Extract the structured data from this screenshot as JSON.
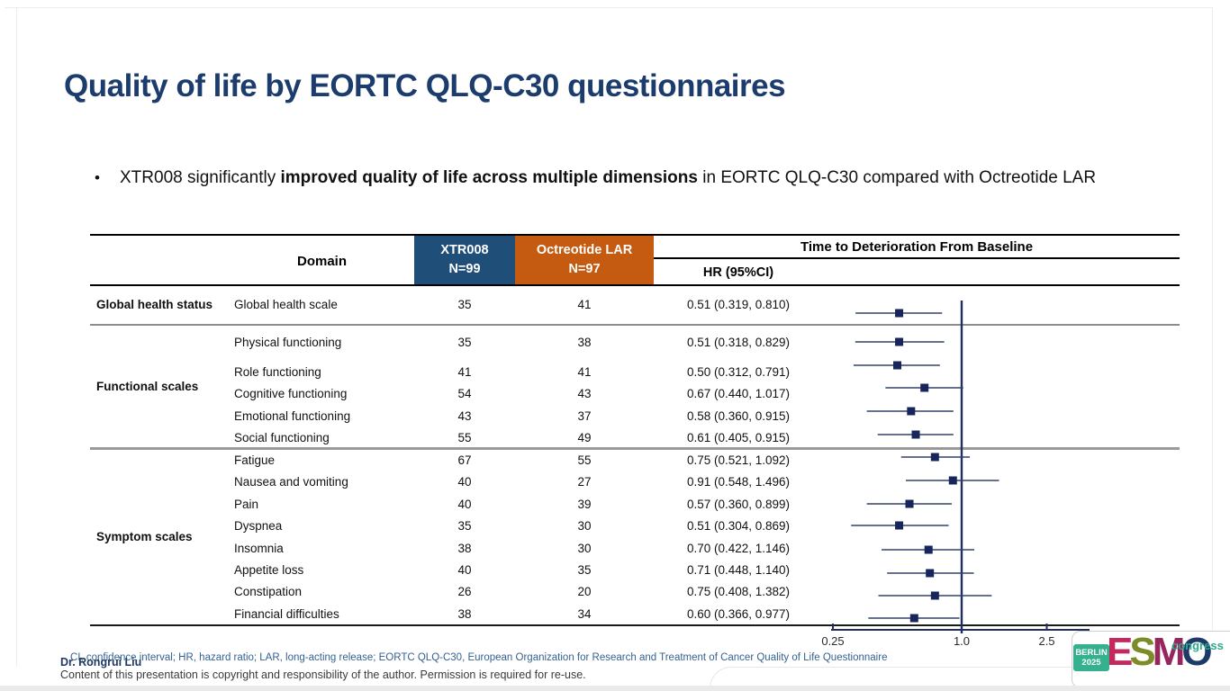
{
  "slide": {
    "title": "Quality of life by EORTC QLQ-C30 questionnaires",
    "bullet": {
      "marker": "•",
      "pre": "XTR008 significantly ",
      "bold": "improved quality of life across multiple dimensions",
      "post": " in EORTC QLQ-C30 compared with Octreotide LAR"
    }
  },
  "table": {
    "headers": {
      "domain": "Domain",
      "arm1_line1": "XTR008",
      "arm1_line2": "N=99",
      "arm2_line1": "Octreotide LAR",
      "arm2_line2": "N=97",
      "time_to_deterioration": "Time to Deterioration From Baseline",
      "hr": "HR (95%CI)"
    },
    "colors": {
      "arm1_bg": "#1F4E79",
      "arm2_bg": "#C55A11",
      "marker": "#16255c",
      "ci_line": "#33426b",
      "axis": "#1f2f5f"
    },
    "sections": [
      {
        "label": "Global health status",
        "rows": [
          {
            "domain": "Global health scale",
            "xtr008": "35",
            "octreotide": "41",
            "hr_text": "0.51 (0.319, 0.810)",
            "hr": 0.51,
            "ci_low": 0.319,
            "ci_high": 0.81
          }
        ]
      },
      {
        "label": "Functional scales",
        "rows": [
          {
            "domain": "Physical functioning",
            "xtr008": "35",
            "octreotide": "38",
            "hr_text": "0.51 (0.318, 0.829)",
            "hr": 0.51,
            "ci_low": 0.318,
            "ci_high": 0.829
          },
          {
            "domain": "Role functioning",
            "xtr008": "41",
            "octreotide": "41",
            "hr_text": "0.50 (0.312, 0.791)",
            "hr": 0.5,
            "ci_low": 0.312,
            "ci_high": 0.791
          },
          {
            "domain": "Cognitive functioning",
            "xtr008": "54",
            "octreotide": "43",
            "hr_text": "0.67 (0.440, 1.017)",
            "hr": 0.67,
            "ci_low": 0.44,
            "ci_high": 1.017
          },
          {
            "domain": "Emotional functioning",
            "xtr008": "43",
            "octreotide": "37",
            "hr_text": "0.58 (0.360, 0.915)",
            "hr": 0.58,
            "ci_low": 0.36,
            "ci_high": 0.915
          },
          {
            "domain": "Social functioning",
            "xtr008": "55",
            "octreotide": "49",
            "hr_text": "0.61 (0.405, 0.915)",
            "hr": 0.61,
            "ci_low": 0.405,
            "ci_high": 0.915
          }
        ]
      },
      {
        "label": "Symptom scales",
        "rows": [
          {
            "domain": "Fatigue",
            "xtr008": "67",
            "octreotide": "55",
            "hr_text": "0.75 (0.521, 1.092)",
            "hr": 0.75,
            "ci_low": 0.521,
            "ci_high": 1.092
          },
          {
            "domain": "Nausea and vomiting",
            "xtr008": "40",
            "octreotide": "27",
            "hr_text": "0.91 (0.548, 1.496)",
            "hr": 0.91,
            "ci_low": 0.548,
            "ci_high": 1.496
          },
          {
            "domain": "Pain",
            "xtr008": "40",
            "octreotide": "39",
            "hr_text": "0.57 (0.360, 0.899)",
            "hr": 0.57,
            "ci_low": 0.36,
            "ci_high": 0.899
          },
          {
            "domain": "Dyspnea",
            "xtr008": "35",
            "octreotide": "30",
            "hr_text": "0.51 (0.304, 0.869)",
            "hr": 0.51,
            "ci_low": 0.304,
            "ci_high": 0.869
          },
          {
            "domain": "Insomnia",
            "xtr008": "38",
            "octreotide": "30",
            "hr_text": "0.70 (0.422, 1.146)",
            "hr": 0.7,
            "ci_low": 0.422,
            "ci_high": 1.146
          },
          {
            "domain": "Appetite loss",
            "xtr008": "40",
            "octreotide": "35",
            "hr_text": "0.71 (0.448, 1.140)",
            "hr": 0.71,
            "ci_low": 0.448,
            "ci_high": 1.14
          },
          {
            "domain": "Constipation",
            "xtr008": "26",
            "octreotide": "20",
            "hr_text": "0.75 (0.408, 1.382)",
            "hr": 0.75,
            "ci_low": 0.408,
            "ci_high": 1.382
          },
          {
            "domain": "Financial difficulties",
            "xtr008": "38",
            "octreotide": "34",
            "hr_text": "0.60 (0.366, 0.977)",
            "hr": 0.6,
            "ci_low": 0.366,
            "ci_high": 0.977
          }
        ]
      }
    ]
  },
  "chart_data": {
    "type": "scatter",
    "subtype": "forest-plot",
    "title": "Time to Deterioration From Baseline",
    "xlabel": "HR (95%CI)",
    "x_scale": "log",
    "xticks": [
      0.25,
      1.0,
      2.5
    ],
    "xtick_labels": [
      "0.25",
      "1.0",
      "2.5"
    ],
    "reference_line": 1.0,
    "legend": "none",
    "series": [
      {
        "name": "HR (95%CI) vs Octreotide LAR",
        "points": [
          {
            "label": "Global health scale",
            "hr": 0.51,
            "ci_low": 0.319,
            "ci_high": 0.81
          },
          {
            "label": "Physical functioning",
            "hr": 0.51,
            "ci_low": 0.318,
            "ci_high": 0.829
          },
          {
            "label": "Role functioning",
            "hr": 0.5,
            "ci_low": 0.312,
            "ci_high": 0.791
          },
          {
            "label": "Cognitive functioning",
            "hr": 0.67,
            "ci_low": 0.44,
            "ci_high": 1.017
          },
          {
            "label": "Emotional functioning",
            "hr": 0.58,
            "ci_low": 0.36,
            "ci_high": 0.915
          },
          {
            "label": "Social functioning",
            "hr": 0.61,
            "ci_low": 0.405,
            "ci_high": 0.915
          },
          {
            "label": "Fatigue",
            "hr": 0.75,
            "ci_low": 0.521,
            "ci_high": 1.092
          },
          {
            "label": "Nausea and vomiting",
            "hr": 0.91,
            "ci_low": 0.548,
            "ci_high": 1.496
          },
          {
            "label": "Pain",
            "hr": 0.57,
            "ci_low": 0.36,
            "ci_high": 0.899
          },
          {
            "label": "Dyspnea",
            "hr": 0.51,
            "ci_low": 0.304,
            "ci_high": 0.869
          },
          {
            "label": "Insomnia",
            "hr": 0.7,
            "ci_low": 0.422,
            "ci_high": 1.146
          },
          {
            "label": "Appetite loss",
            "hr": 0.71,
            "ci_low": 0.448,
            "ci_high": 1.14
          },
          {
            "label": "Constipation",
            "hr": 0.75,
            "ci_low": 0.408,
            "ci_high": 1.382
          },
          {
            "label": "Financial difficulties",
            "hr": 0.6,
            "ci_low": 0.366,
            "ci_high": 0.977
          }
        ]
      }
    ]
  },
  "footer": {
    "abbreviations": "CI, confidence interval; HR, hazard ratio; LAR, long-acting release; EORTC QLQ-C30, European Organization for Research and Treatment of Cancer Quality of Life Questionnaire",
    "presenter": "Dr. Rongrui Liu",
    "copyright": "Content of this presentation is copyright and responsibility of the author. Permission is required for re-use."
  },
  "logo": {
    "badge_line1": "BERLIN",
    "badge_line2": "2025",
    "letters": [
      "E",
      "S",
      "M",
      "O"
    ],
    "letter_colors": [
      "#c22a5e",
      "#7e8c27",
      "#97265f",
      "#1d3a69"
    ],
    "badge_bg": "#35b18f",
    "congress": "congress",
    "congress_color": "#2ba98c"
  }
}
